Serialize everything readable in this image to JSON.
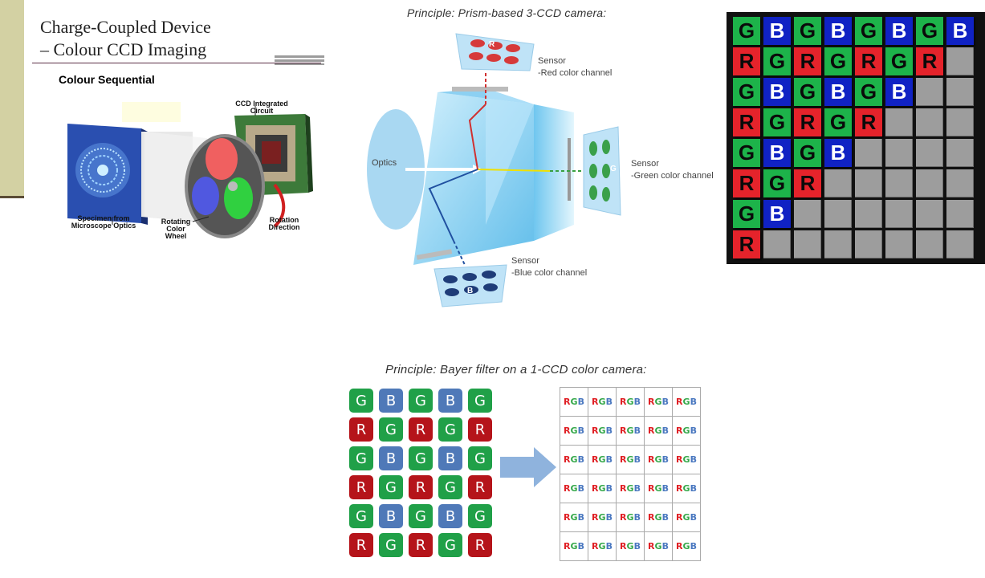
{
  "slide": {
    "title_line1": "Charge-Coupled Device",
    "title_line2": "– Colour CCD Imaging",
    "subtitle": "Colour Sequential",
    "labels": {
      "ccd_circuit": "CCD Integrated Circuit",
      "specimen": "Specimen from Microscope Optics",
      "wheel": "Rotating Color Wheel",
      "rotation": "Rotation Direction"
    }
  },
  "prism": {
    "caption": "Principle: Prism-based 3-CCD camera:",
    "optics": "Optics",
    "sensor_red": {
      "title": "Sensor",
      "channel": "-Red color channel",
      "letter": "R"
    },
    "sensor_green": {
      "title": "Sensor",
      "channel": "-Green color channel",
      "letter": "G"
    },
    "sensor_blue": {
      "title": "Sensor",
      "channel": "-Blue color channel",
      "letter": "B"
    }
  },
  "bayer_grid": {
    "rows": [
      [
        "G",
        "B",
        "G",
        "B",
        "G",
        "B",
        "G",
        "B"
      ],
      [
        "R",
        "G",
        "R",
        "G",
        "R",
        "G",
        "R",
        "E"
      ],
      [
        "G",
        "B",
        "G",
        "B",
        "G",
        "B",
        "E",
        "E"
      ],
      [
        "R",
        "G",
        "R",
        "G",
        "R",
        "E",
        "E",
        "E"
      ],
      [
        "G",
        "B",
        "G",
        "B",
        "E",
        "E",
        "E",
        "E"
      ],
      [
        "R",
        "G",
        "R",
        "E",
        "E",
        "E",
        "E",
        "E"
      ],
      [
        "G",
        "B",
        "E",
        "E",
        "E",
        "E",
        "E",
        "E"
      ],
      [
        "R",
        "E",
        "E",
        "E",
        "E",
        "E",
        "E",
        "E"
      ]
    ]
  },
  "bayer_filter": {
    "caption": "Principle: Bayer filter on a 1-CCD color camera:",
    "pattern": [
      [
        "G",
        "B",
        "G",
        "B",
        "G"
      ],
      [
        "R",
        "G",
        "R",
        "G",
        "R"
      ],
      [
        "G",
        "B",
        "G",
        "B",
        "G"
      ],
      [
        "R",
        "G",
        "R",
        "G",
        "R"
      ],
      [
        "G",
        "B",
        "G",
        "B",
        "G"
      ],
      [
        "R",
        "G",
        "R",
        "G",
        "R"
      ]
    ],
    "output_rows": 6,
    "output_cols": 5,
    "output_label": "RGB"
  },
  "colors": {
    "green": "#1db34a",
    "blue": "#1022c4",
    "red": "#e5232b",
    "empty": "#9d9d9d"
  }
}
